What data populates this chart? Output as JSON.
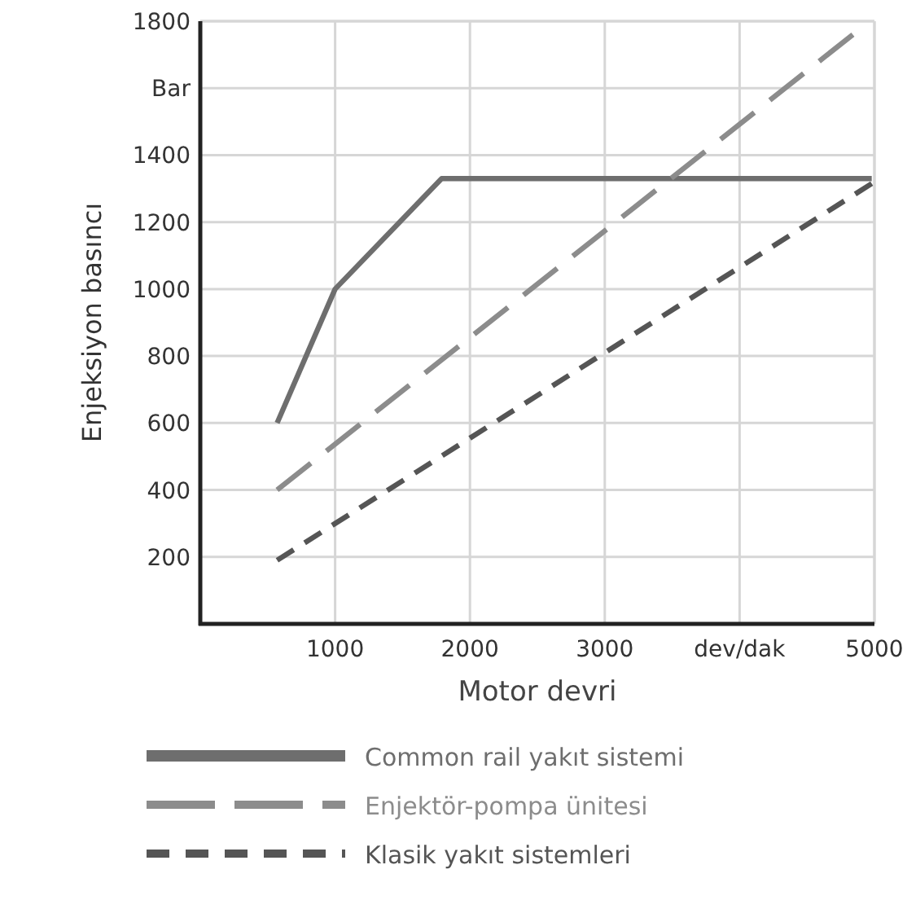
{
  "chart_data": {
    "type": "line",
    "xlabel": "Motor devri",
    "ylabel": "Enjeksiyon basıncı",
    "xlim": [
      0,
      5000
    ],
    "xticks": [
      1000,
      2000,
      3000,
      {
        "value": 4000,
        "label": "dev/dak"
      },
      5000
    ],
    "ylim": [
      0,
      1800
    ],
    "yticks": [
      200,
      400,
      600,
      800,
      1000,
      1200,
      1400,
      {
        "value": 1600,
        "label": null
      },
      1800
    ],
    "annotations": [
      "Bar"
    ],
    "grid": true,
    "legend": "bottom",
    "series": [
      {
        "name": "Common rail yakıt sistemi",
        "color": "#6e6e6e",
        "line_style": "solid",
        "x": [
          570,
          1000,
          1790,
          4980
        ],
        "values": [
          600,
          1000,
          1330,
          1330
        ]
      },
      {
        "name": "Enjektör-pompa ünitesi",
        "color": "#8c8c8c",
        "line_style": "dashed",
        "x": [
          570,
          4840
        ],
        "values": [
          400,
          1760
        ]
      },
      {
        "name": "Klasik yakıt sistemleri",
        "color": "#555555",
        "line_style": "dotted",
        "x": [
          570,
          4980
        ],
        "values": [
          190,
          1315
        ]
      }
    ]
  }
}
